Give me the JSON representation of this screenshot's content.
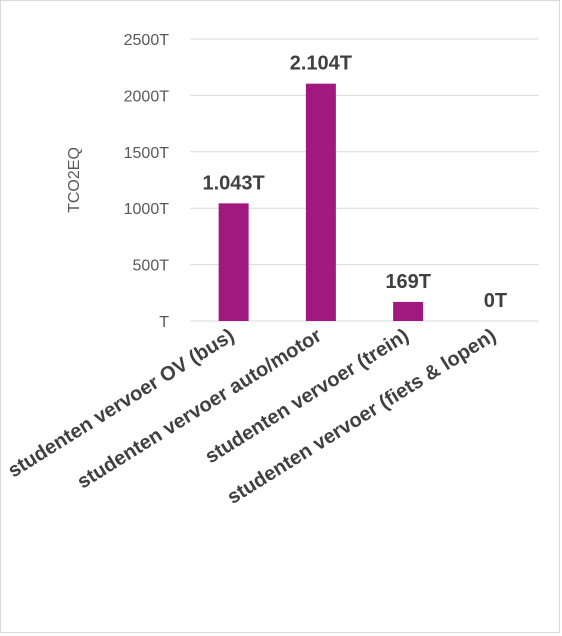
{
  "chart_data": {
    "type": "bar",
    "ylabel": "TCO2EQ",
    "ylim": [
      0,
      2500
    ],
    "yticks": [
      0,
      500,
      1000,
      1500,
      2000,
      2500
    ],
    "ytick_labels": [
      "T",
      "500T",
      "1000T",
      "1500T",
      "2000T",
      "2500T"
    ],
    "categories": [
      "studenten vervoer OV (bus)",
      "studenten vervoer auto/motor",
      "studenten vervoer (trein)",
      "studenten vervoer (fiets & lopen)"
    ],
    "values": [
      1043,
      2104,
      169,
      0
    ],
    "data_labels": [
      "1.043T",
      "2.104T",
      "169T",
      "0T"
    ],
    "bar_color": "#A0197F",
    "grid": true,
    "legend": "none"
  }
}
